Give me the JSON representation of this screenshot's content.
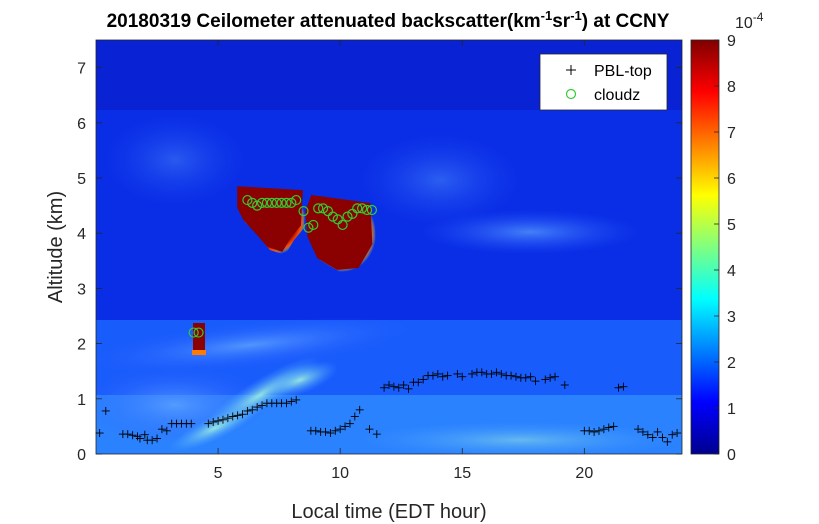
{
  "chart_data": {
    "type": "heatmap",
    "title_parts": {
      "prefix": "20180319 Ceilometer attenuated backscatter(km",
      "sup1": "-1",
      "mid": "sr",
      "sup2": "-1",
      "suffix": ") at CCNY"
    },
    "xlabel": "Local time (EDT hour)",
    "ylabel": "Altitude (km)",
    "xlim": [
      0,
      24
    ],
    "ylim": [
      0,
      7.5
    ],
    "xticks": [
      "5",
      "10",
      "15",
      "20"
    ],
    "yticks": [
      "0",
      "1",
      "2",
      "3",
      "4",
      "5",
      "6",
      "7"
    ],
    "colorbar": {
      "min": 0,
      "max": 9,
      "ticks": [
        "0",
        "1",
        "2",
        "3",
        "4",
        "5",
        "6",
        "7",
        "8",
        "9"
      ],
      "exponent_base": "10",
      "exponent": "-4",
      "colormap": "jet"
    },
    "legend": {
      "placement": "top-right",
      "entries": [
        {
          "name": "PBL-top",
          "marker": "plus",
          "color": "#000000"
        },
        {
          "name": "cloudz",
          "marker": "circle",
          "color": "#33cc33"
        }
      ]
    },
    "series": [
      {
        "name": "PBL-top",
        "x": [
          0.15,
          0.4,
          1.1,
          1.3,
          1.5,
          1.7,
          1.8,
          2.0,
          2.1,
          2.3,
          2.5,
          2.7,
          2.9,
          3.1,
          3.3,
          3.5,
          3.7,
          3.9,
          4.6,
          4.8,
          5.0,
          5.2,
          5.4,
          5.6,
          5.8,
          6.0,
          6.2,
          6.4,
          6.6,
          6.8,
          7.0,
          7.2,
          7.4,
          7.6,
          7.8,
          8.0,
          8.2,
          8.8,
          9.0,
          9.2,
          9.4,
          9.6,
          9.8,
          10.0,
          10.2,
          10.4,
          10.6,
          10.8,
          11.2,
          11.5,
          11.8,
          12.0,
          12.2,
          12.4,
          12.6,
          12.8,
          13.0,
          13.2,
          13.4,
          13.6,
          13.8,
          14.0,
          14.2,
          14.4,
          14.8,
          15.0,
          15.4,
          15.6,
          15.8,
          16.0,
          16.2,
          16.4,
          16.6,
          16.8,
          17.0,
          17.2,
          17.4,
          17.6,
          17.8,
          18.0,
          18.4,
          18.6,
          18.8,
          19.2,
          20.0,
          20.2,
          20.4,
          20.6,
          20.8,
          21.0,
          21.2,
          21.4,
          21.6,
          22.2,
          22.4,
          22.6,
          22.8,
          23.0,
          23.2,
          23.4,
          23.6,
          23.8
        ],
        "y": [
          0.38,
          0.78,
          0.36,
          0.36,
          0.34,
          0.32,
          0.28,
          0.35,
          0.25,
          0.25,
          0.28,
          0.45,
          0.42,
          0.55,
          0.55,
          0.55,
          0.55,
          0.55,
          0.55,
          0.58,
          0.6,
          0.62,
          0.65,
          0.68,
          0.7,
          0.72,
          0.78,
          0.8,
          0.85,
          0.88,
          0.92,
          0.92,
          0.92,
          0.92,
          0.92,
          0.95,
          0.98,
          0.42,
          0.42,
          0.4,
          0.4,
          0.38,
          0.42,
          0.45,
          0.5,
          0.55,
          0.68,
          0.8,
          0.45,
          0.36,
          1.2,
          1.25,
          1.22,
          1.2,
          1.25,
          1.18,
          1.3,
          1.3,
          1.35,
          1.42,
          1.42,
          1.45,
          1.4,
          1.42,
          1.45,
          1.4,
          1.45,
          1.48,
          1.48,
          1.45,
          1.45,
          1.48,
          1.45,
          1.42,
          1.42,
          1.4,
          1.38,
          1.38,
          1.4,
          1.32,
          1.35,
          1.38,
          1.4,
          1.25,
          0.42,
          0.42,
          0.4,
          0.42,
          0.45,
          0.48,
          0.5,
          1.2,
          1.22,
          0.45,
          0.4,
          0.35,
          0.3,
          0.4,
          0.3,
          0.22,
          0.35,
          0.38
        ]
      },
      {
        "name": "cloudz",
        "x": [
          4.0,
          4.2,
          6.2,
          6.4,
          6.6,
          6.8,
          7.0,
          7.2,
          7.4,
          7.6,
          7.8,
          8.0,
          8.2,
          8.5,
          8.7,
          8.9,
          9.1,
          9.3,
          9.5,
          9.7,
          9.9,
          10.1,
          10.3,
          10.5,
          10.7,
          10.9,
          11.1,
          11.3
        ],
        "y": [
          2.2,
          2.2,
          4.6,
          4.55,
          4.5,
          4.55,
          4.55,
          4.55,
          4.55,
          4.55,
          4.55,
          4.55,
          4.6,
          4.4,
          4.1,
          4.15,
          4.45,
          4.45,
          4.4,
          4.3,
          4.25,
          4.15,
          4.3,
          4.35,
          4.45,
          4.45,
          4.42,
          4.42
        ]
      }
    ]
  }
}
